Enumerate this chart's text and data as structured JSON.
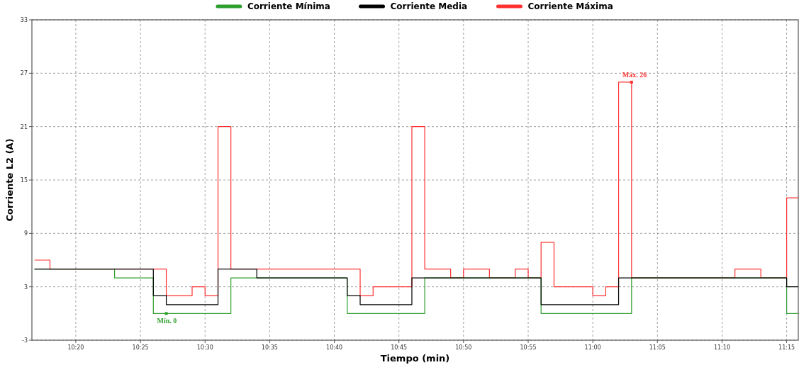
{
  "chart_data": {
    "type": "step",
    "xlabel": "Tiempo (min)",
    "ylabel": "Corriente L2 (A)",
    "xlim": [
      10.2767,
      11.265
    ],
    "ylim": [
      -3,
      33
    ],
    "xticks": [
      {
        "value": 10.3333,
        "label": "10:20"
      },
      {
        "value": 10.4167,
        "label": "10:25"
      },
      {
        "value": 10.5,
        "label": "10:30"
      },
      {
        "value": 10.5833,
        "label": "10:35"
      },
      {
        "value": 10.6667,
        "label": "10:40"
      },
      {
        "value": 10.75,
        "label": "10:45"
      },
      {
        "value": 10.8333,
        "label": "10:50"
      },
      {
        "value": 10.9167,
        "label": "10:55"
      },
      {
        "value": 11,
        "label": "11:00"
      },
      {
        "value": 11.0833,
        "label": "11:05"
      },
      {
        "value": 11.1667,
        "label": "11:10"
      },
      {
        "value": 11.25,
        "label": "11:15"
      }
    ],
    "yticks": [
      -3,
      3,
      9,
      15,
      21,
      27,
      33
    ],
    "grid": true,
    "legend": "top",
    "line_style": "solid",
    "marker": "none",
    "series": [
      {
        "name": "Corriente Máxima",
        "color": "#ff3030",
        "x": [
          10.28,
          10.3,
          10.45,
          10.4833,
          10.5,
          10.5167,
          10.5333,
          10.7,
          10.7167,
          10.7667,
          10.7833,
          10.8167,
          10.8333,
          10.8667,
          10.9,
          10.9167,
          10.9333,
          10.95,
          11,
          11.0167,
          11.0333,
          11.05,
          11.1833,
          11.2167,
          11.25,
          11.265
        ],
        "values": [
          6,
          5,
          2,
          3,
          2,
          21,
          5,
          2,
          3,
          21,
          5,
          4,
          5,
          4,
          5,
          4,
          8,
          3,
          2,
          3,
          26,
          4,
          5,
          4,
          13,
          13
        ]
      },
      {
        "name": "Corriente Mínima",
        "color": "#2e9e2e",
        "x": [
          10.28,
          10.3833,
          10.4333,
          10.5333,
          10.6833,
          10.7833,
          10.9333,
          11.05,
          11.25,
          11.265
        ],
        "values": [
          5,
          4,
          0,
          4,
          0,
          4,
          0,
          4,
          0,
          0
        ]
      },
      {
        "name": "Corriente Media",
        "color": "#000000",
        "x": [
          10.28,
          10.4333,
          10.45,
          10.5167,
          10.5667,
          10.6833,
          10.7,
          10.7667,
          10.9333,
          11.0333,
          11.25,
          11.265
        ],
        "values": [
          5,
          2,
          1,
          5,
          4,
          2,
          1,
          4,
          1,
          4,
          3,
          3
        ]
      }
    ],
    "annotations": [
      {
        "text": "Mín. 0",
        "x": 10.45,
        "y": 0
      },
      {
        "text": "Máx. 26",
        "x": 11.05,
        "y": 26
      }
    ]
  }
}
